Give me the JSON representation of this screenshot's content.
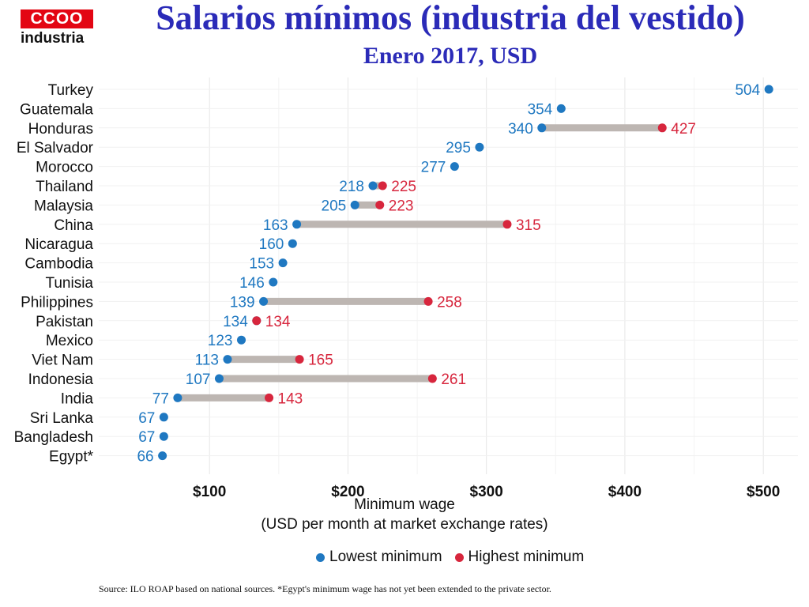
{
  "logo": {
    "brand": "CCOO",
    "text": "industria"
  },
  "header": {
    "title": "Salarios mínimos (industria del vestido)",
    "subtitle": "Enero 2017, USD"
  },
  "chart_data": {
    "type": "dumbbell",
    "xlabel": "Minimum wage",
    "xlabel_sub": "(USD per month at market exchange rates)",
    "xlim": [
      20,
      525
    ],
    "xticks": [
      100,
      200,
      300,
      400,
      500
    ],
    "xtick_labels": [
      "$100",
      "$200",
      "$300",
      "$400",
      "$500"
    ],
    "grid": true,
    "legend_position": "bottom",
    "colors": {
      "lowest": "#1f78c1",
      "highest": "#d7263d",
      "range": "#bdb6b2"
    },
    "series": [
      {
        "name": "Lowest minimum"
      },
      {
        "name": "Highest minimum"
      }
    ],
    "countries": [
      {
        "name": "Turkey",
        "low": 504,
        "high": null
      },
      {
        "name": "Guatemala",
        "low": 354,
        "high": null
      },
      {
        "name": "Honduras",
        "low": 340,
        "high": 427
      },
      {
        "name": "El Salvador",
        "low": 295,
        "high": null
      },
      {
        "name": "Morocco",
        "low": 277,
        "high": null
      },
      {
        "name": "Thailand",
        "low": 218,
        "high": 225
      },
      {
        "name": "Malaysia",
        "low": 205,
        "high": 223
      },
      {
        "name": "China",
        "low": 163,
        "high": 315
      },
      {
        "name": "Nicaragua",
        "low": 160,
        "high": null
      },
      {
        "name": "Cambodia",
        "low": 153,
        "high": null
      },
      {
        "name": "Tunisia",
        "low": 146,
        "high": null
      },
      {
        "name": "Philippines",
        "low": 139,
        "high": 258
      },
      {
        "name": "Pakistan",
        "low": 134,
        "high": 134
      },
      {
        "name": "Mexico",
        "low": 123,
        "high": null
      },
      {
        "name": "Viet Nam",
        "low": 113,
        "high": 165
      },
      {
        "name": "Indonesia",
        "low": 107,
        "high": 261
      },
      {
        "name": "India",
        "low": 77,
        "high": 143
      },
      {
        "name": "Sri Lanka",
        "low": 67,
        "high": null
      },
      {
        "name": "Bangladesh",
        "low": 67,
        "high": null
      },
      {
        "name": "Egypt*",
        "low": 66,
        "high": null
      }
    ]
  },
  "footer": {
    "source": "Source: ILO ROAP based on national sources. *Egypt's minimum wage has not yet been extended to the private sector."
  }
}
